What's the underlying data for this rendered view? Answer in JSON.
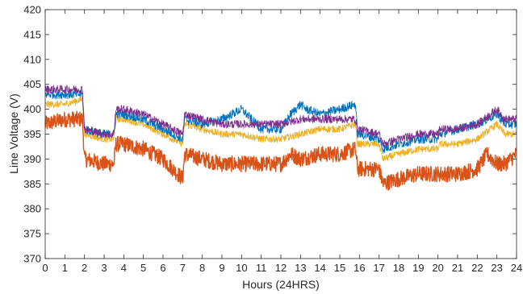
{
  "chart_data": {
    "type": "line",
    "title": "",
    "xlabel": "Hours (24HRS)",
    "ylabel": "Line Voltage (V)",
    "xlim": [
      0,
      24
    ],
    "ylim": [
      370,
      420
    ],
    "xticks": [
      0,
      1,
      2,
      3,
      4,
      5,
      6,
      7,
      8,
      9,
      10,
      11,
      12,
      13,
      14,
      15,
      16,
      17,
      18,
      19,
      20,
      21,
      22,
      23,
      24
    ],
    "yticks": [
      370,
      375,
      380,
      385,
      390,
      395,
      400,
      405,
      410,
      415,
      420
    ],
    "grid": false,
    "legend": "none",
    "series": [
      {
        "color": "#D95319",
        "x": [
          0,
          1,
          1.9,
          2,
          3,
          3.5,
          3.6,
          4,
          5,
          6,
          6.5,
          7,
          7.1,
          8,
          9,
          10,
          11,
          12,
          12.5,
          13,
          14,
          15,
          15.8,
          15.9,
          16,
          17,
          17.2,
          18,
          19,
          20,
          20.1,
          21,
          22,
          22.5,
          23,
          23.4,
          24
        ],
        "y": [
          397,
          398,
          398,
          390,
          389,
          389,
          393,
          393,
          392,
          390,
          388,
          386,
          391,
          390,
          389,
          389,
          389,
          389,
          391,
          390,
          391,
          391,
          392,
          388,
          388,
          388,
          385,
          386,
          387,
          387,
          387,
          387,
          388,
          391,
          389,
          389,
          391
        ]
      },
      {
        "color": "#EDB120",
        "x": [
          0,
          1,
          1.9,
          2,
          3,
          3.5,
          3.6,
          4,
          5,
          6,
          6.5,
          7,
          7.1,
          8,
          9,
          10,
          11,
          12,
          13,
          14,
          15,
          15.8,
          15.9,
          16,
          17,
          17.2,
          18,
          19,
          20,
          20.1,
          21,
          22,
          23,
          23.4,
          24
        ],
        "y": [
          401,
          401,
          402,
          395,
          394,
          394,
          398,
          398,
          397,
          395,
          394,
          393,
          397,
          396,
          395,
          395,
          394,
          394,
          395,
          396,
          396,
          397,
          393,
          393,
          393,
          390,
          391,
          392,
          392,
          393,
          393,
          394,
          397,
          395,
          395
        ]
      },
      {
        "color": "#0072BD",
        "x": [
          0,
          1,
          1.9,
          2,
          3,
          3.5,
          3.6,
          4,
          5,
          6,
          6.5,
          7,
          7.1,
          8,
          9,
          9.5,
          10,
          10.5,
          11,
          12,
          12.5,
          13,
          13.3,
          14,
          15,
          15.8,
          15.9,
          16,
          17,
          17.2,
          18,
          19,
          20,
          20.1,
          21,
          22,
          23,
          23.4,
          24
        ],
        "y": [
          403,
          403,
          403,
          396,
          395,
          395,
          399,
          399,
          398,
          396,
          395,
          394,
          398,
          397,
          398,
          399,
          400,
          398,
          396,
          396,
          399,
          401,
          400,
          399,
          400,
          401,
          395,
          395,
          394,
          392,
          393,
          394,
          394,
          395,
          396,
          397,
          399,
          397,
          397
        ]
      },
      {
        "color": "#7E2F8E",
        "x": [
          0,
          1,
          1.9,
          2,
          3,
          3.5,
          3.6,
          4,
          5,
          6,
          6.5,
          7,
          7.1,
          8,
          9,
          10,
          11,
          12,
          13,
          14,
          15,
          15.8,
          15.9,
          16,
          17,
          17.2,
          18,
          19,
          20,
          20.1,
          21,
          22,
          23,
          23.4,
          24
        ],
        "y": [
          404,
          404,
          404,
          396,
          395,
          395,
          400,
          400,
          399,
          397,
          396,
          395,
          399,
          398,
          397,
          397,
          397,
          397,
          398,
          398,
          398,
          398,
          396,
          396,
          395,
          393,
          394,
          395,
          395,
          396,
          396,
          397,
          400,
          398,
          398
        ]
      }
    ]
  }
}
